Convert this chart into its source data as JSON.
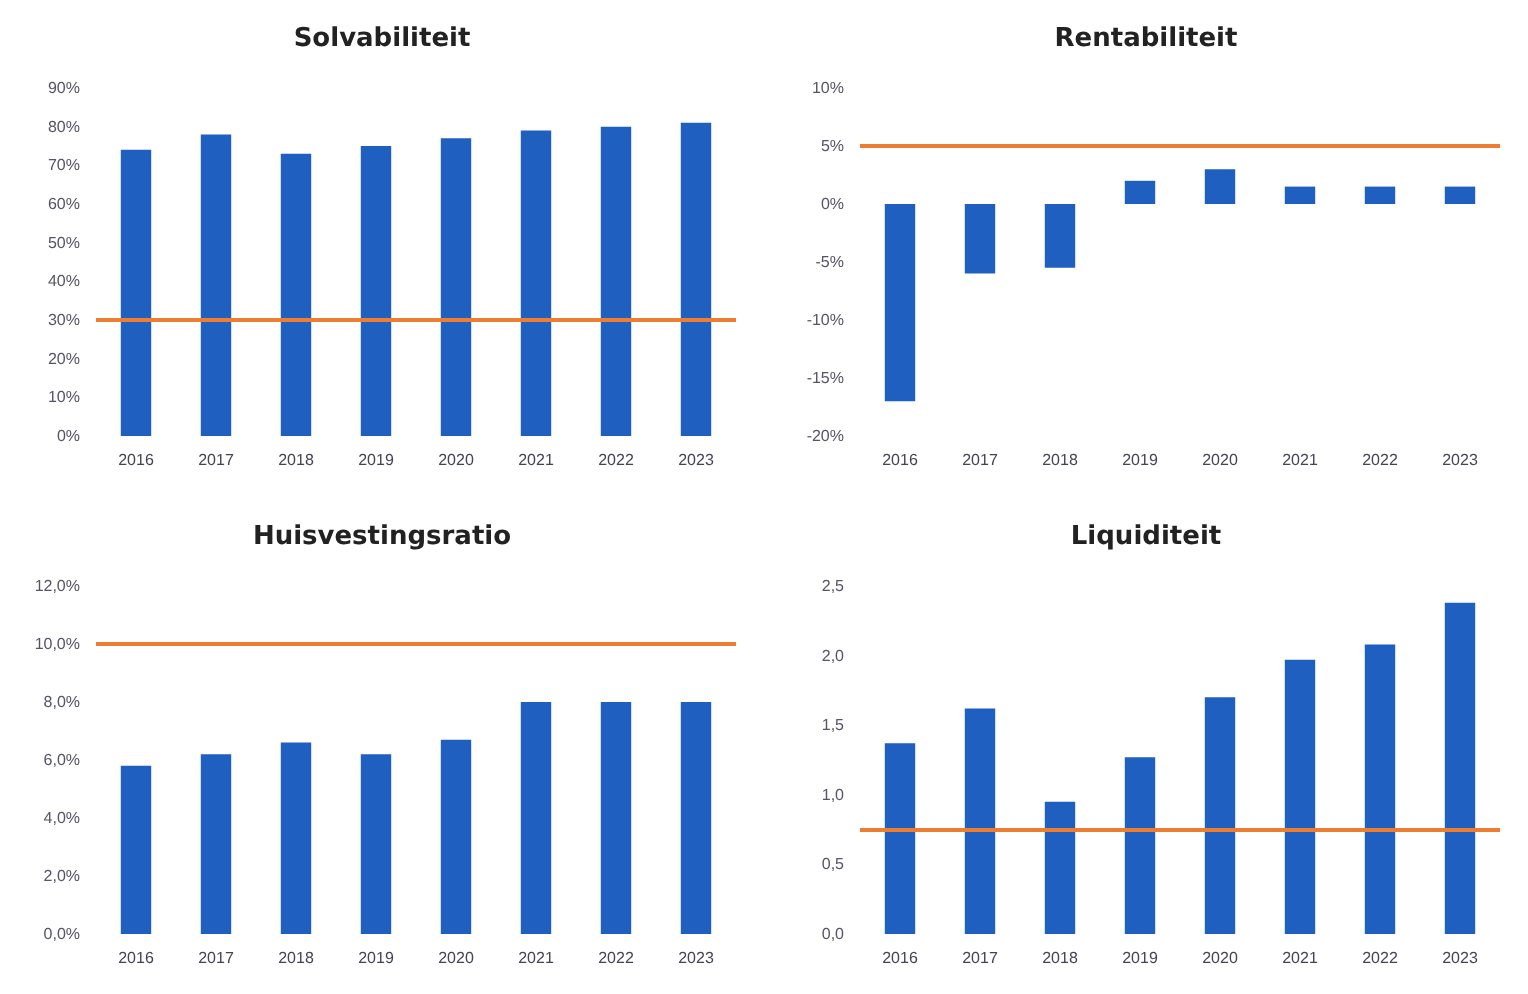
{
  "chart_data": [
    {
      "type": "bar",
      "title": "Solvabiliteit",
      "categories": [
        "2016",
        "2017",
        "2018",
        "2019",
        "2020",
        "2021",
        "2022",
        "2023"
      ],
      "values": [
        74,
        78,
        73,
        75,
        77,
        79,
        80,
        81
      ],
      "color": "#1f5fc0",
      "ylim": [
        0,
        90
      ],
      "yticks": [
        {
          "value": 0,
          "label": "0%"
        },
        {
          "value": 10,
          "label": "10%"
        },
        {
          "value": 20,
          "label": "20%"
        },
        {
          "value": 30,
          "label": "30%"
        },
        {
          "value": 40,
          "label": "40%"
        },
        {
          "value": 50,
          "label": "50%"
        },
        {
          "value": 60,
          "label": "60%"
        },
        {
          "value": 70,
          "label": "70%"
        },
        {
          "value": 80,
          "label": "80%"
        },
        {
          "value": 90,
          "label": "90%"
        }
      ],
      "grid": false,
      "ref_lines": [
        {
          "axis": "y",
          "value": 30,
          "color": "#ed7d31"
        }
      ]
    },
    {
      "type": "bar",
      "title": "Rentabiliteit",
      "categories": [
        "2016",
        "2017",
        "2018",
        "2019",
        "2020",
        "2021",
        "2022",
        "2023"
      ],
      "values": [
        -17,
        -6,
        -5.5,
        2,
        3,
        1.5,
        1.5,
        1.5
      ],
      "color": "#1f5fc0",
      "ylim": [
        -20,
        10
      ],
      "yticks": [
        {
          "value": -20,
          "label": "-20%"
        },
        {
          "value": -15,
          "label": "-15%"
        },
        {
          "value": -10,
          "label": "-10%"
        },
        {
          "value": -5,
          "label": "-5%"
        },
        {
          "value": 0,
          "label": "0%"
        },
        {
          "value": 5,
          "label": "5%"
        },
        {
          "value": 10,
          "label": "10%"
        }
      ],
      "grid": false,
      "ref_lines": [
        {
          "axis": "y",
          "value": 5,
          "color": "#ed7d31"
        }
      ]
    },
    {
      "type": "bar",
      "title": "Huisvestingsratio",
      "categories": [
        "2016",
        "2017",
        "2018",
        "2019",
        "2020",
        "2021",
        "2022",
        "2023"
      ],
      "values": [
        5.8,
        6.2,
        6.6,
        6.2,
        6.7,
        8.0,
        8.0,
        8.0
      ],
      "color": "#1f5fc0",
      "ylim": [
        0,
        12
      ],
      "yticks": [
        {
          "value": 0,
          "label": "0,0%"
        },
        {
          "value": 2,
          "label": "2,0%"
        },
        {
          "value": 4,
          "label": "4,0%"
        },
        {
          "value": 6,
          "label": "6,0%"
        },
        {
          "value": 8,
          "label": "8,0%"
        },
        {
          "value": 10,
          "label": "10,0%"
        },
        {
          "value": 12,
          "label": "12,0%"
        }
      ],
      "grid": false,
      "ref_lines": [
        {
          "axis": "y",
          "value": 10,
          "color": "#ed7d31"
        }
      ]
    },
    {
      "type": "bar",
      "title": "Liquiditeit",
      "categories": [
        "2016",
        "2017",
        "2018",
        "2019",
        "2020",
        "2021",
        "2022",
        "2023"
      ],
      "values": [
        1.37,
        1.62,
        0.95,
        1.27,
        1.7,
        1.97,
        2.08,
        2.38
      ],
      "color": "#1f5fc0",
      "ylim": [
        0,
        2.5
      ],
      "yticks": [
        {
          "value": 0,
          "label": "0,0"
        },
        {
          "value": 0.5,
          "label": "0,5"
        },
        {
          "value": 1,
          "label": "1,0"
        },
        {
          "value": 1.5,
          "label": "1,5"
        },
        {
          "value": 2,
          "label": "2,0"
        },
        {
          "value": 2.5,
          "label": "2,5"
        }
      ],
      "grid": false,
      "ref_lines": [
        {
          "axis": "y",
          "value": 0.75,
          "color": "#ed7d31"
        }
      ]
    }
  ]
}
